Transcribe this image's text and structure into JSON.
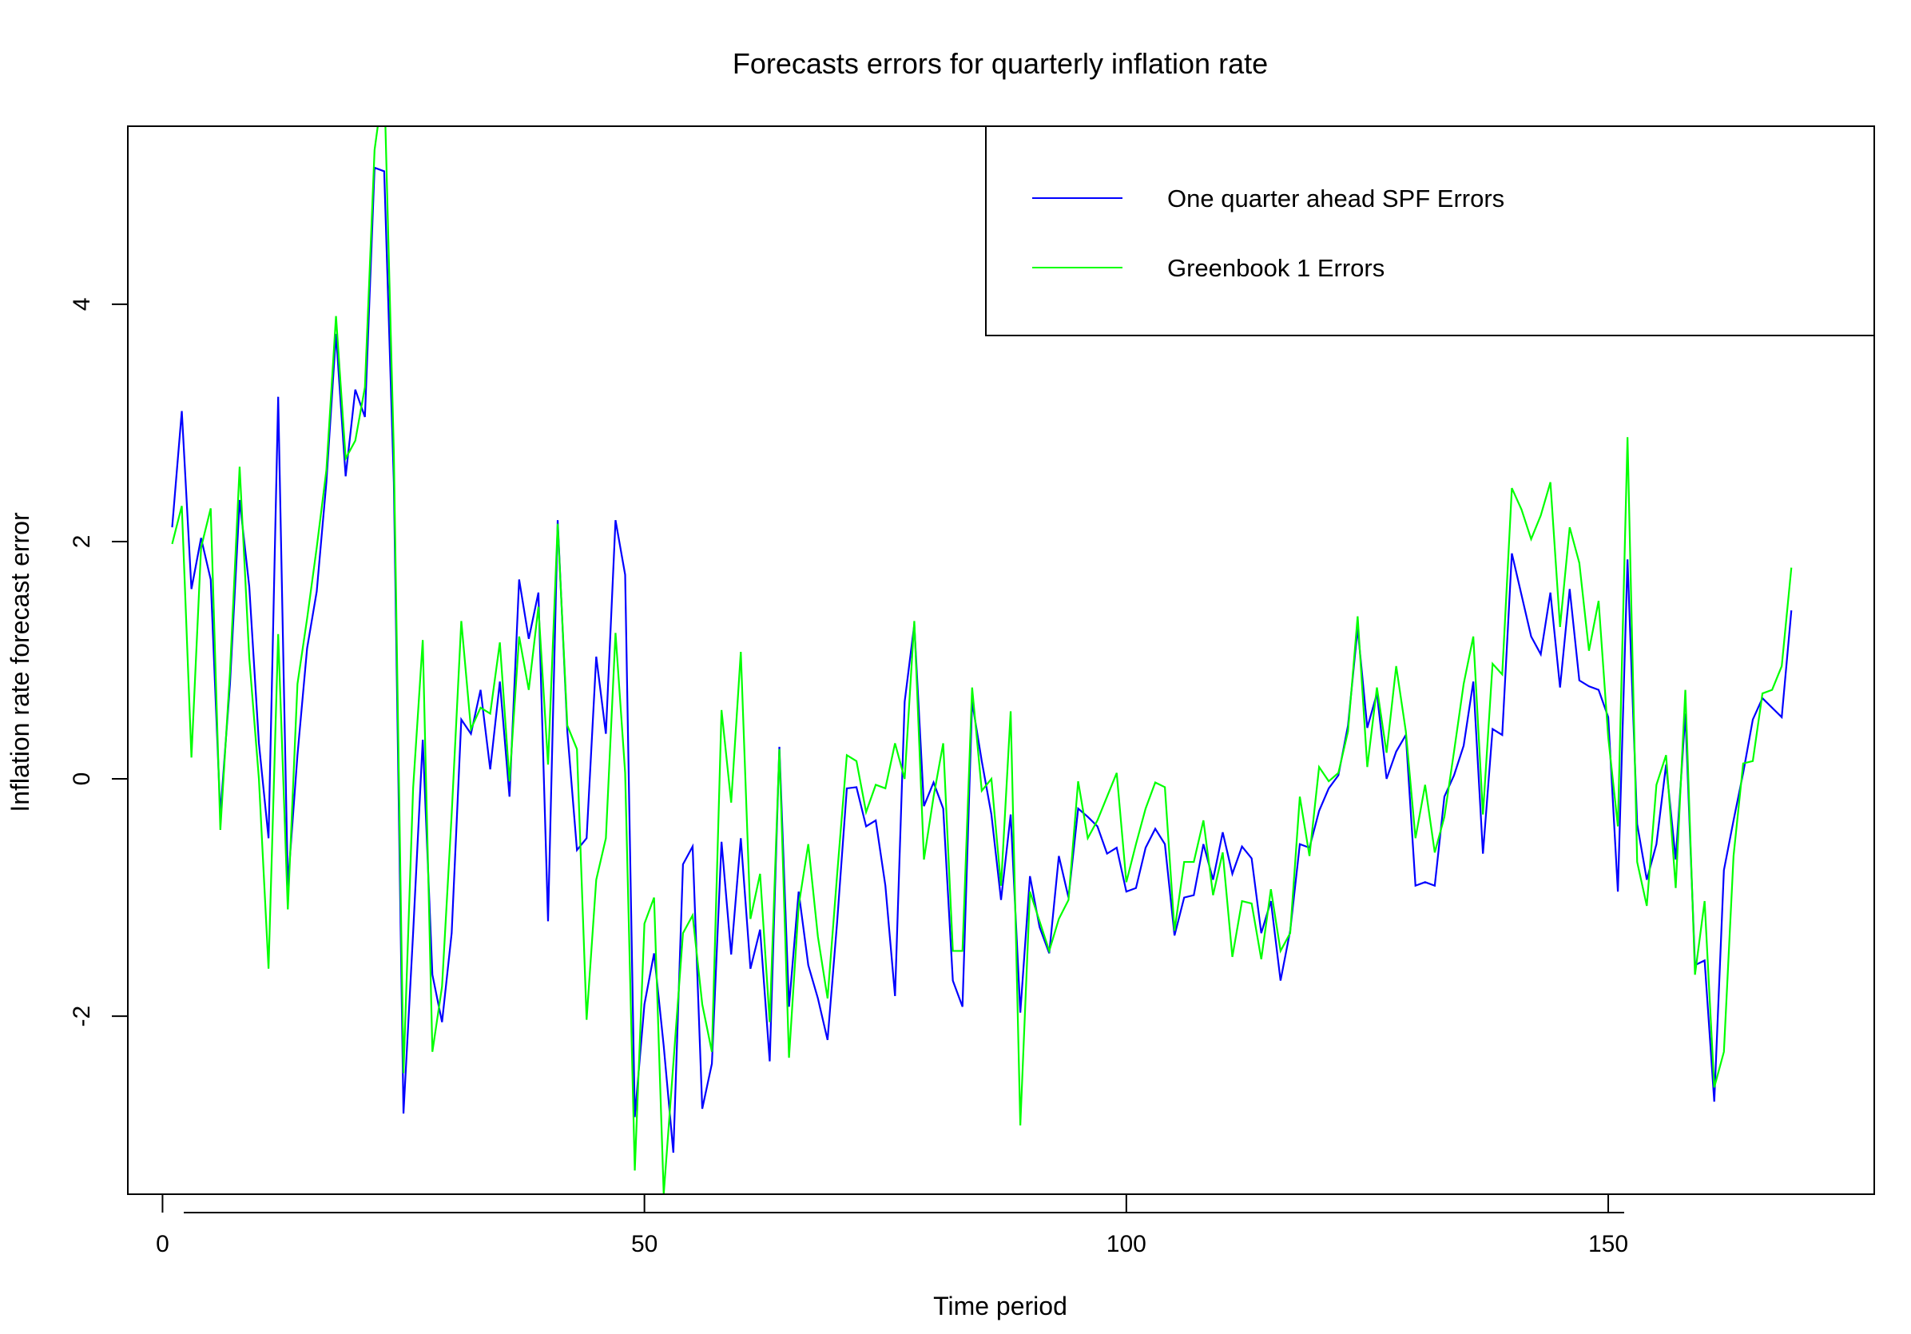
{
  "chart_data": {
    "type": "line",
    "title": "Forecasts errors for quarterly inflation rate",
    "xlabel": "Time period",
    "ylabel": "Inflation rate forecast error",
    "xlim": [
      -3.6,
      177.6
    ],
    "ylim": [
      -3.5,
      5.5
    ],
    "x_ticks": [
      0,
      50,
      100,
      150
    ],
    "y_ticks": [
      -2,
      0,
      2,
      4
    ],
    "x_tick_labels": [
      "0",
      "50",
      "100",
      "150"
    ],
    "y_tick_labels": [
      "-2",
      "0",
      "2",
      "4"
    ],
    "grid": false,
    "legend_position": "top-right",
    "x_start": 1,
    "series": [
      {
        "name": "One quarter ahead SPF Errors",
        "color": "#0000ff",
        "values": [
          2.12,
          3.1,
          1.6,
          2.03,
          1.68,
          -0.3,
          0.8,
          2.35,
          1.62,
          0.3,
          -0.5,
          3.22,
          -0.9,
          0.2,
          1.1,
          1.58,
          2.5,
          3.75,
          2.55,
          3.28,
          3.05,
          5.15,
          5.12,
          2.5,
          -2.82,
          -1.3,
          0.33,
          -1.65,
          -2.05,
          -1.3,
          0.5,
          0.38,
          0.75,
          0.08,
          0.82,
          -0.15,
          1.68,
          1.18,
          1.57,
          -1.2,
          2.18,
          0.4,
          -0.6,
          -0.5,
          1.03,
          0.38,
          2.18,
          1.72,
          -2.85,
          -1.9,
          -1.47,
          -2.25,
          -3.15,
          -0.72,
          -0.57,
          -2.78,
          -2.4,
          -0.53,
          -1.48,
          -0.5,
          -1.6,
          -1.27,
          -2.38,
          0.27,
          -1.92,
          -0.95,
          -1.57,
          -1.85,
          -2.2,
          -1.2,
          -0.08,
          -0.07,
          -0.4,
          -0.35,
          -0.9,
          -1.83,
          0.65,
          1.3,
          -0.23,
          -0.03,
          -0.25,
          -1.7,
          -1.92,
          0.65,
          0.15,
          -0.3,
          -1.02,
          -0.3,
          -1.97,
          -0.82,
          -1.25,
          -1.47,
          -0.65,
          -1.0,
          -0.25,
          -0.32,
          -0.4,
          -0.63,
          -0.58,
          -0.95,
          -0.92,
          -0.58,
          -0.42,
          -0.55,
          -1.32,
          -1.0,
          -0.98,
          -0.55,
          -0.85,
          -0.45,
          -0.8,
          -0.57,
          -0.67,
          -1.3,
          -1.03,
          -1.7,
          -1.28,
          -0.55,
          -0.58,
          -0.27,
          -0.08,
          0.03,
          0.45,
          1.27,
          0.43,
          0.72,
          0.0,
          0.23,
          0.37,
          -0.9,
          -0.87,
          -0.9,
          -0.15,
          0.03,
          0.28,
          0.82,
          -0.63,
          0.42,
          0.37,
          1.9,
          1.55,
          1.2,
          1.05,
          1.57,
          0.77,
          1.6,
          0.83,
          0.78,
          0.75,
          0.52,
          -0.95,
          1.85,
          -0.38,
          -0.85,
          -0.55,
          0.12,
          -0.68,
          0.55,
          -1.57,
          -1.53,
          -2.72,
          -0.77,
          -0.35,
          0.05,
          0.5,
          0.68,
          0.6,
          0.52,
          1.42
        ]
      },
      {
        "name": "Greenbook 1 Errors",
        "color": "#00ff00",
        "values": [
          1.98,
          2.3,
          0.18,
          1.95,
          2.28,
          -0.43,
          0.9,
          2.63,
          1.02,
          0.0,
          -1.6,
          1.22,
          -1.1,
          0.8,
          1.35,
          1.95,
          2.6,
          3.9,
          2.7,
          2.85,
          3.3,
          5.3,
          5.9,
          2.75,
          -2.48,
          -0.08,
          1.17,
          -2.3,
          -1.75,
          -0.3,
          1.33,
          0.42,
          0.6,
          0.55,
          1.15,
          -0.02,
          1.2,
          0.75,
          1.45,
          0.12,
          2.15,
          0.45,
          0.25,
          -2.03,
          -0.85,
          -0.5,
          1.23,
          0.05,
          -3.3,
          -1.22,
          -1.0,
          -3.5,
          -2.4,
          -1.3,
          -1.15,
          -1.9,
          -2.3,
          0.58,
          -0.2,
          1.07,
          -1.18,
          -0.8,
          -2.05,
          0.25,
          -2.35,
          -1.07,
          -0.55,
          -1.33,
          -1.85,
          -0.8,
          0.2,
          0.15,
          -0.28,
          -0.05,
          -0.08,
          0.3,
          0.0,
          1.33,
          -0.68,
          -0.15,
          0.3,
          -1.45,
          -1.45,
          0.77,
          -0.1,
          0.0,
          -0.9,
          0.57,
          -2.92,
          -0.95,
          -1.2,
          -1.45,
          -1.18,
          -1.02,
          -0.02,
          -0.5,
          -0.35,
          -0.15,
          0.05,
          -0.87,
          -0.55,
          -0.25,
          -0.03,
          -0.07,
          -1.28,
          -0.7,
          -0.7,
          -0.35,
          -0.98,
          -0.62,
          -1.5,
          -1.03,
          -1.05,
          -1.52,
          -0.93,
          -1.45,
          -1.3,
          -0.15,
          -0.65,
          0.1,
          -0.02,
          0.05,
          0.4,
          1.37,
          0.1,
          0.77,
          0.22,
          0.95,
          0.4,
          -0.5,
          -0.05,
          -0.62,
          -0.32,
          0.23,
          0.8,
          1.2,
          -0.3,
          0.97,
          0.88,
          2.45,
          2.27,
          2.02,
          2.22,
          2.5,
          1.28,
          2.12,
          1.82,
          1.08,
          1.5,
          0.35,
          -0.4,
          2.88,
          -0.7,
          -1.07,
          -0.05,
          0.2,
          -0.92,
          0.75,
          -1.65,
          -1.03,
          -2.6,
          -2.3,
          -0.65,
          0.13,
          0.15,
          0.72,
          0.75,
          0.95,
          1.78
        ]
      }
    ]
  }
}
